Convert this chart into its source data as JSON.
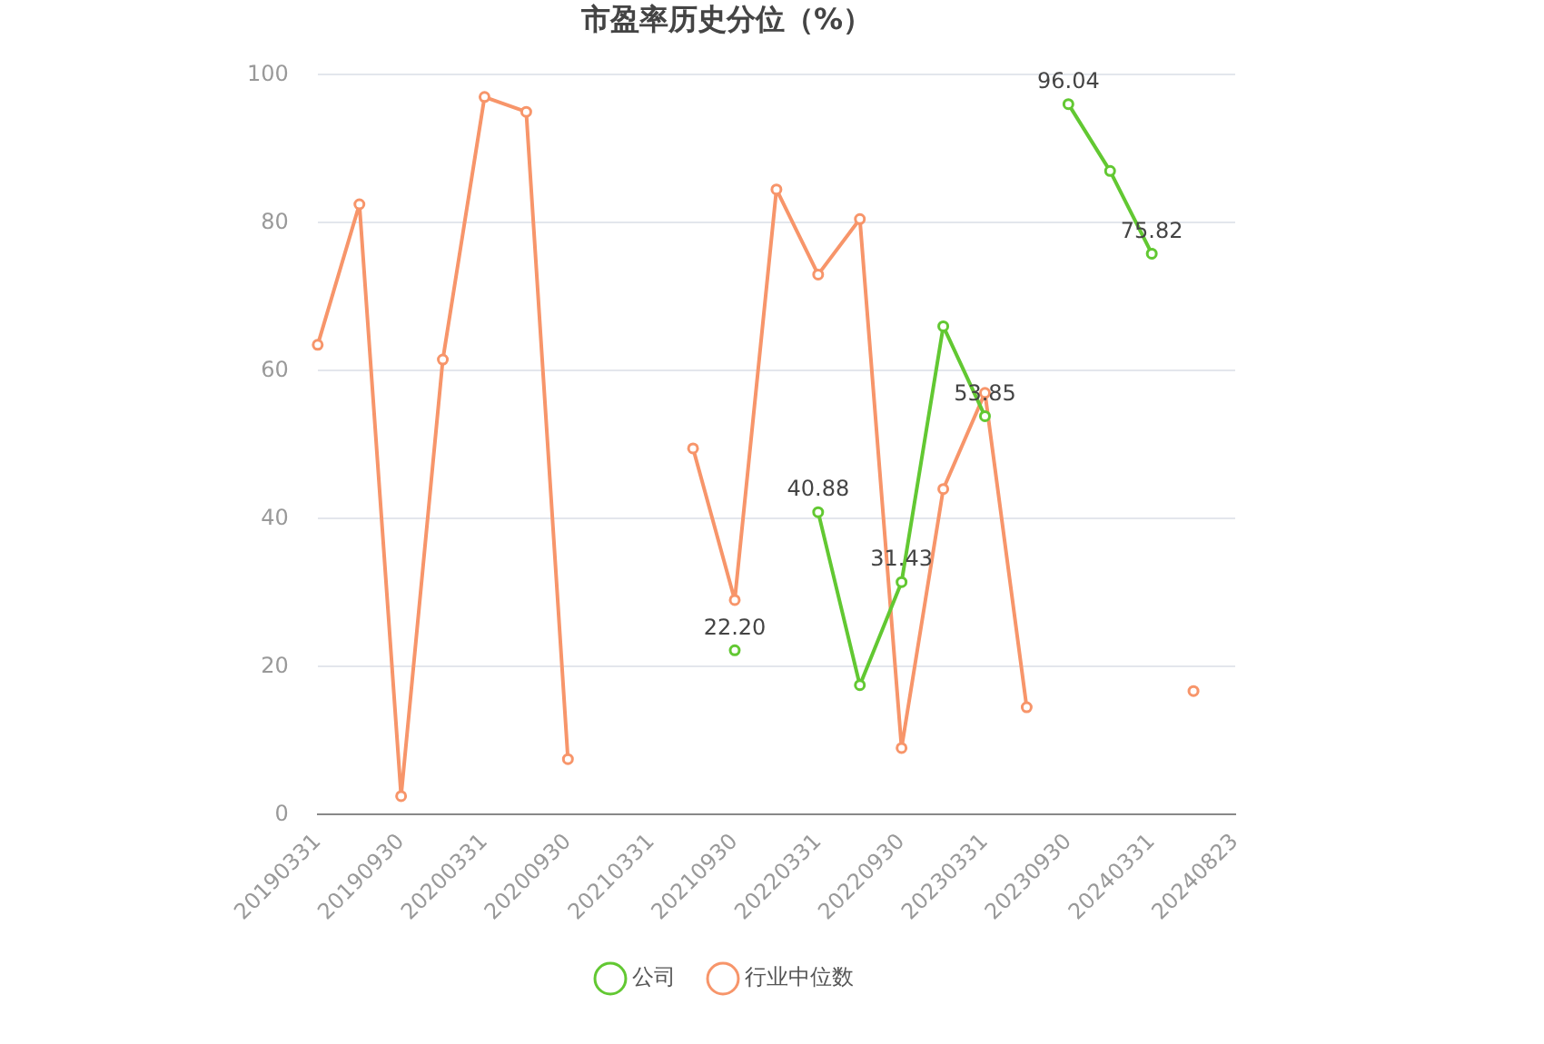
{
  "chart_data": {
    "type": "line",
    "title": "市盈率历史分位（%）",
    "categories": [
      "20190331",
      null,
      "20190930",
      null,
      "20200331",
      null,
      "20200930",
      null,
      "20210331",
      null,
      "20210930",
      null,
      "20220331",
      null,
      "20220930",
      null,
      "20230331",
      null,
      "20230930",
      null,
      "20240331",
      null,
      "20240823"
    ],
    "series": [
      {
        "name": "公司",
        "color": "#62c832",
        "values": [
          null,
          null,
          null,
          null,
          null,
          null,
          null,
          null,
          null,
          null,
          22.2,
          null,
          40.88,
          17.5,
          31.43,
          66,
          53.85,
          null,
          96.04,
          87,
          75.82,
          null,
          null
        ],
        "value_labels": [
          null,
          null,
          null,
          null,
          null,
          null,
          null,
          null,
          null,
          null,
          "22.20",
          null,
          "40.88",
          null,
          "31.43",
          null,
          "53.85",
          null,
          "96.04",
          null,
          "75.82",
          null,
          null
        ]
      },
      {
        "name": "行业中位数",
        "color": "#f7956a",
        "values": [
          63.5,
          82.5,
          2.5,
          61.5,
          97,
          95,
          7.5,
          null,
          null,
          49.5,
          29,
          84.5,
          73,
          80.5,
          9,
          44,
          57,
          14.5,
          null,
          null,
          null,
          16.7,
          null
        ]
      }
    ],
    "ylim": [
      0,
      100
    ],
    "yticks": [
      0,
      20,
      40,
      60,
      80,
      100
    ],
    "grid": "y",
    "legend": "bottom",
    "marker": "circle",
    "line_style": "solid"
  }
}
